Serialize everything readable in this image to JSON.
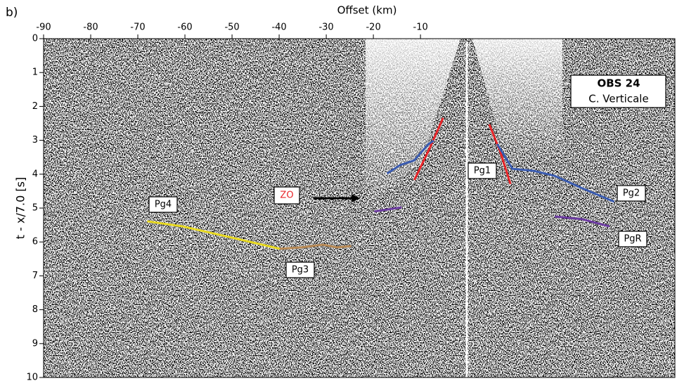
{
  "chart_data": {
    "type": "seismic-section",
    "panel_label": "b)",
    "x_label": "Offset (km)",
    "y_label": "t - x/7.0 [s]",
    "xlim": [
      -90,
      44
    ],
    "xticks": [
      -90,
      -80,
      -70,
      -60,
      -50,
      -40,
      -30,
      -20,
      -10
    ],
    "ylim": [
      0,
      10
    ],
    "yticks": [
      0,
      1,
      2,
      3,
      4,
      5,
      6,
      7,
      8,
      9,
      10
    ],
    "station": "OBS 24",
    "component": "C. Verticale",
    "annotation": "ZO",
    "series": [
      {
        "name": "Pg1",
        "color": "#e8262a",
        "x": [
          -11.3,
          -8.0,
          -5.2,
          0,
          4.6,
          6.9,
          9.1
        ],
        "values": [
          4.17,
          3.22,
          2.34,
          null,
          2.53,
          3.32,
          4.29
        ]
      },
      {
        "name": "Pg2",
        "color": "#3a5bb0",
        "x": [
          -17.1,
          -14.3,
          -11.3,
          -8.3,
          -7.2,
          0,
          6.3,
          9.5,
          14.0,
          18.5,
          24.4,
          31.1
        ],
        "values": [
          3.98,
          3.73,
          3.59,
          3.11,
          3.01,
          null,
          3.11,
          3.84,
          3.9,
          4.05,
          4.42,
          4.81
        ]
      },
      {
        "name": "PgR",
        "color": "#6b3aa0",
        "x": [
          -19.8,
          -14.0,
          0,
          18.5,
          24.4,
          30.1
        ],
        "values": [
          5.1,
          4.98,
          null,
          5.25,
          5.33,
          5.54
        ]
      },
      {
        "name": "Pg3",
        "color": "#b98a55",
        "x": [
          -39.9,
          -35.2,
          -30.7,
          -27.7,
          -24.7
        ],
        "values": [
          6.2,
          6.16,
          6.08,
          6.16,
          6.12
        ]
      },
      {
        "name": "Pg4",
        "color": "#e8d920",
        "x": [
          -68.0,
          -60.5,
          -50.1,
          -39.9
        ],
        "values": [
          5.39,
          5.54,
          5.87,
          6.2
        ]
      }
    ]
  }
}
